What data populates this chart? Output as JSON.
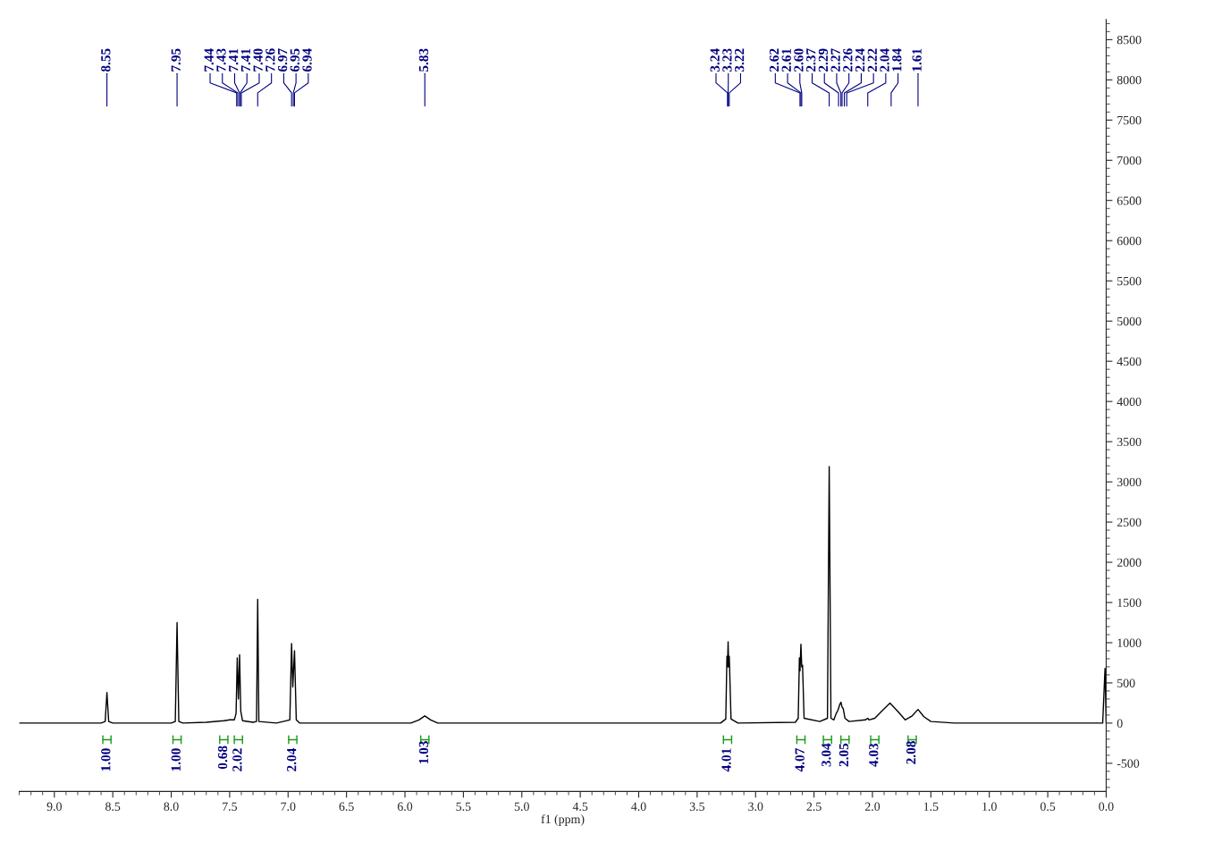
{
  "chart_data": {
    "type": "line",
    "xlabel": "f1 (ppm)",
    "xlim": [
      9.3,
      0.0
    ],
    "xticks": [
      {
        "value": 9,
        "label": "9.0"
      },
      8.5,
      {
        "value": 8,
        "label": "8.0"
      },
      7.5,
      {
        "value": 7,
        "label": "7.0"
      },
      6.5,
      {
        "value": 6,
        "label": "6.0"
      },
      5.5,
      {
        "value": 5,
        "label": "5.0"
      },
      4.5,
      {
        "value": 4,
        "label": "4.0"
      },
      3.5,
      {
        "value": 3,
        "label": "3.0"
      },
      2.5,
      {
        "value": 2,
        "label": "2.0"
      },
      1.5,
      {
        "value": 1,
        "label": "1.0"
      },
      0.5,
      {
        "value": 0,
        "label": "0.0"
      }
    ],
    "ylim": [
      -850,
      8750
    ],
    "yticks": [
      {
        "value": -500,
        "label": "-500"
      },
      0,
      500,
      1000,
      1500,
      2000,
      2500,
      3000,
      3500,
      4000,
      4500,
      5000,
      5500,
      6000,
      6500,
      7000,
      7500,
      8000,
      8500
    ],
    "grid": false,
    "legend": false,
    "series": [
      {
        "color": "#000000",
        "x": [
          9.3,
          8.6,
          8.565,
          8.55,
          8.535,
          8.5,
          8.0,
          7.965,
          7.95,
          7.935,
          7.9,
          7.7,
          7.55,
          7.5,
          7.46,
          7.445,
          7.435,
          7.425,
          7.415,
          7.405,
          7.39,
          7.3,
          7.27,
          7.26,
          7.25,
          7.1,
          6.985,
          6.97,
          6.96,
          6.945,
          6.93,
          6.9,
          5.95,
          5.88,
          5.83,
          5.78,
          5.72,
          3.3,
          3.255,
          3.245,
          3.24,
          3.235,
          3.23,
          3.225,
          3.21,
          3.15,
          2.66,
          2.635,
          2.625,
          2.62,
          2.612,
          2.605,
          2.598,
          2.585,
          2.45,
          2.385,
          2.37,
          2.355,
          2.33,
          2.31,
          2.295,
          2.28,
          2.27,
          2.26,
          2.25,
          2.235,
          2.2,
          2.06,
          2.04,
          2.03,
          1.98,
          1.92,
          1.85,
          1.78,
          1.72,
          1.66,
          1.61,
          1.56,
          1.5,
          1.3,
          0.05,
          0.03,
          0.01,
          0.0
        ],
        "values": [
          0,
          0,
          20,
          380,
          20,
          0,
          0,
          20,
          1250,
          20,
          0,
          10,
          30,
          40,
          40,
          120,
          810,
          300,
          850,
          150,
          30,
          10,
          20,
          1540,
          20,
          0,
          40,
          990,
          450,
          900,
          40,
          0,
          0,
          40,
          90,
          40,
          0,
          0,
          50,
          830,
          700,
          1010,
          700,
          830,
          50,
          0,
          10,
          60,
          810,
          650,
          980,
          700,
          720,
          60,
          20,
          60,
          3190,
          60,
          40,
          120,
          160,
          230,
          260,
          200,
          180,
          60,
          20,
          40,
          60,
          40,
          60,
          150,
          250,
          140,
          40,
          90,
          170,
          80,
          20,
          0,
          0,
          0,
          680,
          0
        ]
      }
    ],
    "annotations": [
      {
        "text": "8.55",
        "x": 8.55
      },
      {
        "text": "7.95",
        "x": 7.95
      },
      {
        "text": "7.44",
        "x": 7.44
      },
      {
        "text": "7.43",
        "x": 7.43
      },
      {
        "text": "7.41",
        "x": 7.415
      },
      {
        "text": "7.41",
        "x": 7.41
      },
      {
        "text": "7.40",
        "x": 7.4
      },
      {
        "text": "7.26",
        "x": 7.26
      },
      {
        "text": "6.97",
        "x": 6.97
      },
      {
        "text": "6.95",
        "x": 6.955
      },
      {
        "text": "6.94",
        "x": 6.945
      },
      {
        "text": "5.83",
        "x": 5.83
      },
      {
        "text": "3.24",
        "x": 3.24
      },
      {
        "text": "3.23",
        "x": 3.235
      },
      {
        "text": "3.22",
        "x": 3.225
      },
      {
        "text": "2.62",
        "x": 2.62
      },
      {
        "text": "2.61",
        "x": 2.612
      },
      {
        "text": "2.60",
        "x": 2.605
      },
      {
        "text": "2.37",
        "x": 2.37
      },
      {
        "text": "2.29",
        "x": 2.29
      },
      {
        "text": "2.27",
        "x": 2.27
      },
      {
        "text": "2.26",
        "x": 2.26
      },
      {
        "text": "2.24",
        "x": 2.24
      },
      {
        "text": "2.22",
        "x": 2.22
      },
      {
        "text": "2.04",
        "x": 2.04
      },
      {
        "text": "1.84",
        "x": 1.84
      },
      {
        "text": "1.61",
        "x": 1.61
      },
      {
        "text": "1.00",
        "x": 8.55,
        "y": 0
      },
      {
        "text": "1.00",
        "x": 7.95,
        "y": 0
      },
      {
        "text": "0.68",
        "x": 7.55,
        "y": 30
      },
      {
        "text": "2.02",
        "x": 7.425,
        "y": 0
      },
      {
        "text": "2.04",
        "x": 6.96,
        "y": 0
      },
      {
        "text": "1.03",
        "x": 5.83,
        "y": 90
      },
      {
        "text": "4.01",
        "x": 3.24,
        "y": 0
      },
      {
        "text": "4.07",
        "x": 2.612,
        "y": 0
      },
      {
        "text": "3.04",
        "x": 2.385,
        "y": 60
      },
      {
        "text": "2.05",
        "x": 2.235,
        "y": 60
      },
      {
        "text": "4.03",
        "x": 1.98,
        "y": 60
      },
      {
        "text": "2.08",
        "x": 1.66,
        "y": 90
      }
    ]
  }
}
